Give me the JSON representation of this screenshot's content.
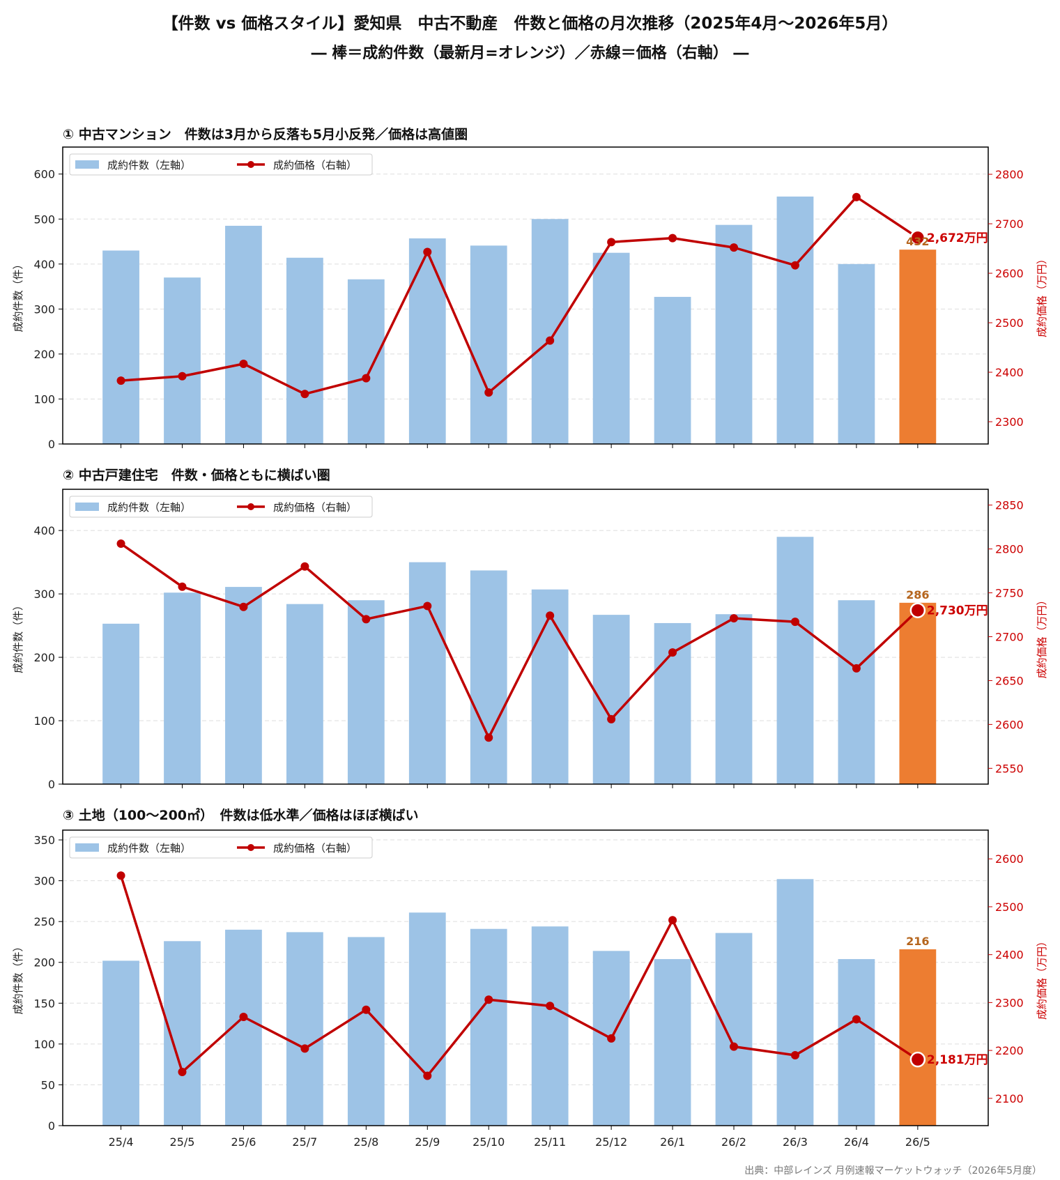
{
  "title": "【件数 vs 価格スタイル】愛知県　中古不動産　件数と価格の月次推移（2025年4月～2026年5月）",
  "subtitle": "― 棒＝成約件数（最新月=オレンジ）／赤線＝価格（右軸） ―",
  "source": "出典：中部レインズ 月例速報マーケットウォッチ（2026年5月度）",
  "colors": {
    "bar": "#9dc3e6",
    "bar_latest": "#ed7d31",
    "line": "#c00000",
    "grid": "#dddddd"
  },
  "chart_data": [
    {
      "type": "bar",
      "title": "① 中古マンション　件数は3月から反落も5月小反発／価格は高値圏",
      "categories": [
        "25/4",
        "25/5",
        "25/6",
        "25/7",
        "25/8",
        "25/9",
        "25/10",
        "25/11",
        "25/12",
        "26/1",
        "26/2",
        "26/3",
        "26/4",
        "26/5"
      ],
      "series": [
        {
          "name": "成約件数（左軸）",
          "axis": "left",
          "type": "bar",
          "values": [
            430,
            370,
            485,
            414,
            366,
            457,
            441,
            500,
            425,
            327,
            487,
            550,
            400,
            432
          ]
        },
        {
          "name": "成約価格（右軸）",
          "axis": "right",
          "type": "line",
          "values": [
            2383,
            2392,
            2417,
            2356,
            2388,
            2643,
            2359,
            2464,
            2663,
            2671,
            2652,
            2616,
            2754,
            2672
          ]
        }
      ],
      "ylabel": "成約件数（件）",
      "y2label": "成約価格（万円）",
      "ylim": [
        0,
        660
      ],
      "y2lim": [
        2255,
        2855
      ],
      "yticks": [
        0,
        100,
        200,
        300,
        400,
        500,
        600
      ],
      "y2ticks": [
        2300,
        2400,
        2500,
        2600,
        2700,
        2800
      ],
      "last_bar_label": "432",
      "last_price_label": "2,672万円",
      "legend": "upper-left",
      "grid": true
    },
    {
      "type": "bar",
      "title": "② 中古戸建住宅　件数・価格ともに横ばい圏",
      "categories": [
        "25/4",
        "25/5",
        "25/6",
        "25/7",
        "25/8",
        "25/9",
        "25/10",
        "25/11",
        "25/12",
        "26/1",
        "26/2",
        "26/3",
        "26/4",
        "26/5"
      ],
      "series": [
        {
          "name": "成約件数（左軸）",
          "axis": "left",
          "type": "bar",
          "values": [
            253,
            302,
            311,
            284,
            290,
            350,
            337,
            307,
            267,
            254,
            268,
            390,
            290,
            286
          ]
        },
        {
          "name": "成約価格（右軸）",
          "axis": "right",
          "type": "line",
          "values": [
            2806,
            2757,
            2734,
            2780,
            2720,
            2735,
            2585,
            2724,
            2606,
            2682,
            2721,
            2717,
            2664,
            2730
          ]
        }
      ],
      "ylabel": "成約件数（件）",
      "y2label": "成約価格（万円）",
      "ylim": [
        0,
        465
      ],
      "y2lim": [
        2532,
        2868
      ],
      "yticks": [
        0,
        100,
        200,
        300,
        400
      ],
      "y2ticks": [
        2550,
        2600,
        2650,
        2700,
        2750,
        2800,
        2850
      ],
      "last_bar_label": "286",
      "last_price_label": "2,730万円",
      "legend": "upper-left",
      "grid": true
    },
    {
      "type": "bar",
      "title": "③ 土地（100～200㎡）　件数は低水準／価格はほぼ横ばい",
      "categories": [
        "25/4",
        "25/5",
        "25/6",
        "25/7",
        "25/8",
        "25/9",
        "25/10",
        "25/11",
        "25/12",
        "26/1",
        "26/2",
        "26/3",
        "26/4",
        "26/5"
      ],
      "series": [
        {
          "name": "成約件数（左軸）",
          "axis": "left",
          "type": "bar",
          "values": [
            202,
            226,
            240,
            237,
            231,
            261,
            241,
            244,
            214,
            204,
            236,
            302,
            204,
            216
          ]
        },
        {
          "name": "成約価格（右軸）",
          "axis": "right",
          "type": "line",
          "values": [
            2565,
            2155,
            2270,
            2204,
            2285,
            2147,
            2306,
            2293,
            2225,
            2472,
            2208,
            2190,
            2265,
            2181
          ]
        }
      ],
      "ylabel": "成約件数（件）",
      "y2label": "成約価格（万円）",
      "ylim": [
        0,
        362
      ],
      "y2lim": [
        2043,
        2660
      ],
      "yticks": [
        0,
        50,
        100,
        150,
        200,
        250,
        300,
        350
      ],
      "y2ticks": [
        2100,
        2200,
        2300,
        2400,
        2500,
        2600
      ],
      "last_bar_label": "216",
      "last_price_label": "2,181万円",
      "legend": "upper-left",
      "grid": true
    }
  ]
}
